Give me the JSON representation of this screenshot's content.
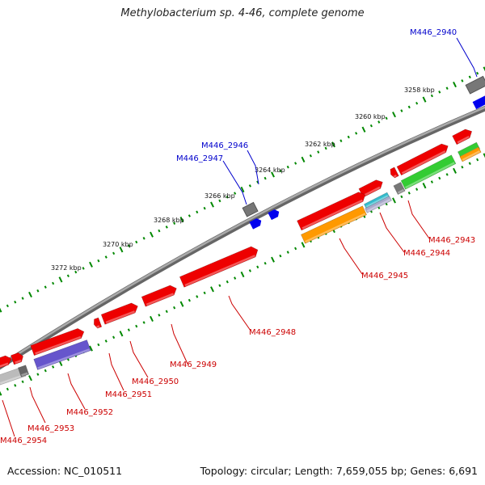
{
  "title": "Methylobacterium sp. 4-46, complete genome",
  "footer": {
    "accession": "Accession: NC_010511",
    "topology": "Topology: circular; Length: 7,659,055 bp; Genes: 6,691"
  },
  "colors": {
    "forward_gene": "#ee0000",
    "reverse_gene_orange": "#ff9900",
    "reverse_gene_green": "#33cc33",
    "blue_feature": "#0000ee",
    "gray_feature": "#777777",
    "tick": "#008800",
    "backbone": "#888888",
    "label_red": "#cc0000",
    "label_blue": "#0000cc"
  },
  "scale_labels": [
    "3258 kbp",
    "3260 kbp",
    "3262 kbp",
    "3264 kbp",
    "3266 kbp",
    "3268 kbp",
    "3270 kbp",
    "3272 kbp"
  ],
  "gene_labels": [
    {
      "text": "M446_2940",
      "color": "blue"
    },
    {
      "text": "M446_2946",
      "color": "blue"
    },
    {
      "text": "M446_2947",
      "color": "blue"
    },
    {
      "text": "M446_2943",
      "color": "red"
    },
    {
      "text": "M446_2944",
      "color": "red"
    },
    {
      "text": "M446_2945",
      "color": "red"
    },
    {
      "text": "M446_2948",
      "color": "red"
    },
    {
      "text": "M446_2949",
      "color": "red"
    },
    {
      "text": "M446_2950",
      "color": "red"
    },
    {
      "text": "M446_2951",
      "color": "red"
    },
    {
      "text": "M446_2952",
      "color": "red"
    },
    {
      "text": "M446_2953",
      "color": "red"
    },
    {
      "text": "M446_2954",
      "color": "red"
    }
  ]
}
